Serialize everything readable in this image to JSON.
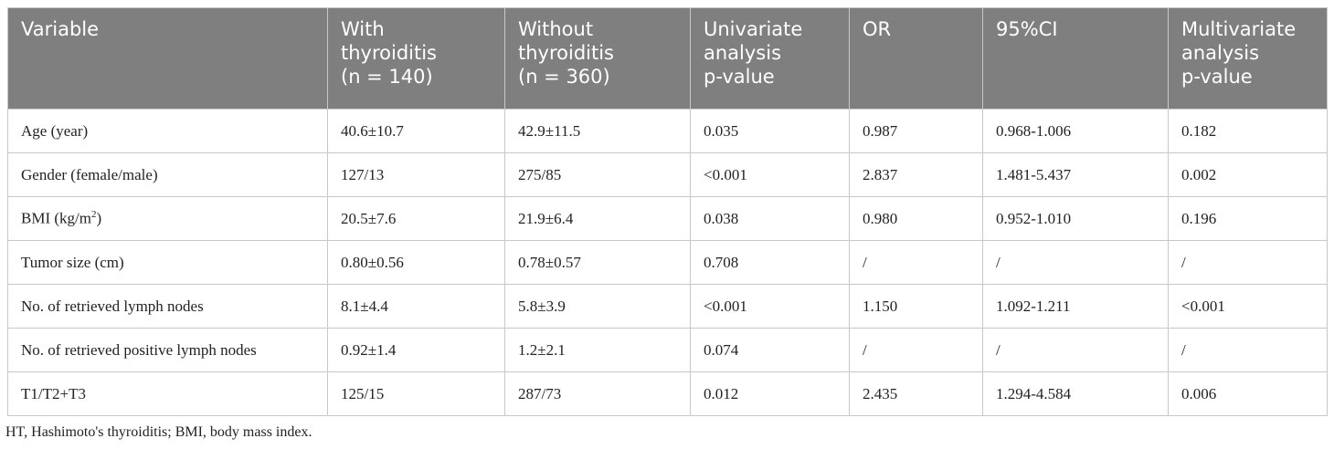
{
  "table": {
    "header": [
      [
        "Variable"
      ],
      [
        "With",
        "thyroiditis",
        "(n = 140)"
      ],
      [
        "Without",
        "thyroiditis",
        "(n = 360)"
      ],
      [
        "Univariate",
        "analysis",
        "p-value"
      ],
      [
        "OR"
      ],
      [
        "95%CI"
      ],
      [
        "Multivariate",
        "analysis",
        "p-value"
      ]
    ],
    "rows": [
      [
        "Age (year)",
        "40.6±10.7",
        "42.9±11.5",
        "0.035",
        "0.987",
        "0.968-1.006",
        "0.182"
      ],
      [
        "Gender (female/male)",
        "127/13",
        "275/85",
        "<0.001",
        "2.837",
        "1.481-5.437",
        "0.002"
      ],
      [
        [
          "BMI (kg/m",
          "2",
          ")"
        ],
        "20.5±7.6",
        "21.9±6.4",
        "0.038",
        "0.980",
        "0.952-1.010",
        "0.196"
      ],
      [
        "Tumor size (cm)",
        "0.80±0.56",
        "0.78±0.57",
        "0.708",
        "/",
        "/",
        "/"
      ],
      [
        "No. of retrieved lymph nodes",
        "8.1±4.4",
        "5.8±3.9",
        "<0.001",
        "1.150",
        "1.092-1.211",
        "<0.001"
      ],
      [
        "No. of retrieved positive lymph nodes",
        "0.92±1.4",
        "1.2±2.1",
        "0.074",
        "/",
        "/",
        "/"
      ],
      [
        "T1/T2+T3",
        "125/15",
        "287/73",
        "0.012",
        "2.435",
        "1.294-4.584",
        "0.006"
      ]
    ],
    "footnote": "HT, Hashimoto's thyroiditis; BMI, body mass index."
  }
}
